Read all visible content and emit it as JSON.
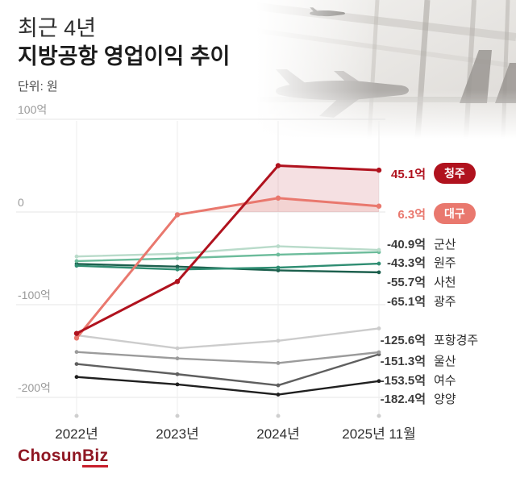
{
  "header": {
    "title_line1": "최근 4년",
    "title_line2": "지방공항 영업이익 추이",
    "unit": "단위: 원"
  },
  "logo": {
    "main": "Chosun",
    "accent": "Biz"
  },
  "colors": {
    "accent_dark_red": "#b0121e",
    "accent_salmon": "#e9786e",
    "logo_red": "#8f1622",
    "grid": "#e4e4e4"
  },
  "chart_data": {
    "type": "line",
    "title": "최근 4년 지방공항 영업이익 추이",
    "unit_label": "단위: 원",
    "x": [
      "2022년",
      "2023년",
      "2024년",
      "2025년 11월"
    ],
    "yticks": [
      {
        "value": 100,
        "label": "100억"
      },
      {
        "value": 0,
        "label": "0"
      },
      {
        "value": -100,
        "label": "-100억"
      },
      {
        "value": -200,
        "label": "-200억"
      }
    ],
    "ylim": [
      -220,
      110
    ],
    "grid": true,
    "legend_position": "right",
    "series": [
      {
        "name": "청주",
        "values": [
          -131,
          -75,
          50,
          45.1
        ],
        "final_label": "45.1억",
        "color": "#b0121e",
        "badge": true,
        "fill": true
      },
      {
        "name": "대구",
        "values": [
          -136,
          -3,
          15,
          6.3
        ],
        "final_label": "6.3억",
        "color": "#e9786e",
        "badge": true,
        "fill": true
      },
      {
        "name": "군산",
        "values": [
          -48,
          -45,
          -37,
          -40.9
        ],
        "final_label": "-40.9억",
        "color": "#b9dbca",
        "badge": false,
        "fill": false
      },
      {
        "name": "원주",
        "values": [
          -53,
          -50,
          -46,
          -43.3
        ],
        "final_label": "-43.3억",
        "color": "#6cbc9b",
        "badge": false,
        "fill": false
      },
      {
        "name": "사천",
        "values": [
          -58,
          -62,
          -60,
          -55.7
        ],
        "final_label": "-55.7억",
        "color": "#2f8d72",
        "badge": false,
        "fill": false
      },
      {
        "name": "광주",
        "values": [
          -56,
          -59,
          -63,
          -65.1
        ],
        "final_label": "-65.1억",
        "color": "#1c5f4d",
        "badge": false,
        "fill": false
      },
      {
        "name": "포항경주",
        "values": [
          -133,
          -147,
          -139,
          -125.6
        ],
        "final_label": "-125.6억",
        "color": "#cccccc",
        "badge": false,
        "fill": false
      },
      {
        "name": "울산",
        "values": [
          -151,
          -158,
          -163,
          -151.3
        ],
        "final_label": "-151.3억",
        "color": "#9b9b9b",
        "badge": false,
        "fill": false
      },
      {
        "name": "여수",
        "values": [
          -164,
          -175,
          -187,
          -153.5
        ],
        "final_label": "-153.5억",
        "color": "#5f5f5f",
        "badge": false,
        "fill": false
      },
      {
        "name": "양양",
        "values": [
          -178,
          -186,
          -197,
          -182.4
        ],
        "final_label": "-182.4억",
        "color": "#1f1f1f",
        "badge": false,
        "fill": false
      }
    ]
  }
}
